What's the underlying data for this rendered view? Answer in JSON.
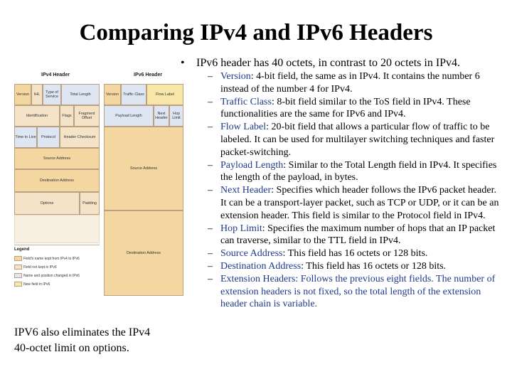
{
  "title": "Comparing IPv4 and IPv6 Headers",
  "intro": {
    "bullet": "•",
    "text": "IPv6 header has 40 octets, in contrast to 20 octets in IPv4."
  },
  "fields": [
    {
      "term": "Version",
      "desc": ": 4-bit field, the same as in IPv4. It contains the number 6 instead of the number 4 for IPv4."
    },
    {
      "term": "Traffic Class",
      "desc": ": 8-bit field similar to the ToS field in IPv4. These functionalities are the same for IPv6 and IPv4."
    },
    {
      "term": "Flow Label",
      "desc": ": 20-bit field that allows a particular flow of traffic to be labeled. It can be used for multilayer switching techniques and faster packet-switching."
    },
    {
      "term": "Payload Length",
      "desc": ": Similar to the Total Length field in IPv4. It specifies the length of the payload, in bytes."
    },
    {
      "term": "Next Header",
      "desc": ": Specifies which header follows the IPv6 packet header. It can be a transport-layer packet, such as TCP or UDP, or it can be an extension header. This field is similar to the Protocol field in IPv4."
    },
    {
      "term": "Hop Limit",
      "desc": ": Specifies the maximum number of hops that an IP packet can traverse, similar to the TTL field in IPv4."
    },
    {
      "term": "Source Address",
      "desc": ": This field has 16 octets or 128 bits."
    },
    {
      "term": "Destination Address",
      "desc": ": This field has 16 octets or 128 bits."
    },
    {
      "term": "Extension Headers",
      "desc": ": Follows the previous eight fields. The number of extension headers is not fixed, so the total length of the extension header chain is variable."
    }
  ],
  "caption": {
    "line1": "IPV6 also eliminates the IPv4",
    "line2": "40-octet limit on options."
  },
  "figure": {
    "ipv4_title": "IPv4 Header",
    "ipv6_title": "IPv6 Header",
    "ipv4": {
      "version": "Version",
      "ihl": "IHL",
      "tos": "Type of Service",
      "total_length": "Total Length",
      "identification": "Identification",
      "flags": "Flags",
      "fragment_offset": "Fragment Offset",
      "ttl": "Time to Live",
      "protocol": "Protocol",
      "checksum": "Header Checksum",
      "source": "Source Address",
      "destination": "Destination Address",
      "options": "Options",
      "padding": "Padding"
    },
    "ipv6": {
      "version": "Version",
      "traffic_class": "Traffic Class",
      "flow_label": "Flow Label",
      "payload_length": "Payload Length",
      "next_header": "Next Header",
      "hop_limit": "Hop Limit",
      "source": "Source Address",
      "destination": "Destination Address"
    },
    "legend": {
      "title": "Legend",
      "items": [
        "Field's name kept from IPv4 to IPv6",
        "Field not kept in IPv6",
        "Name and position changed in IPv6",
        "New field in IPv6"
      ]
    },
    "colors": {
      "kept": "#f4d6a0",
      "removed": "#f5e3c8",
      "changed": "#dde6f2",
      "new": "#f7e6a8"
    }
  }
}
